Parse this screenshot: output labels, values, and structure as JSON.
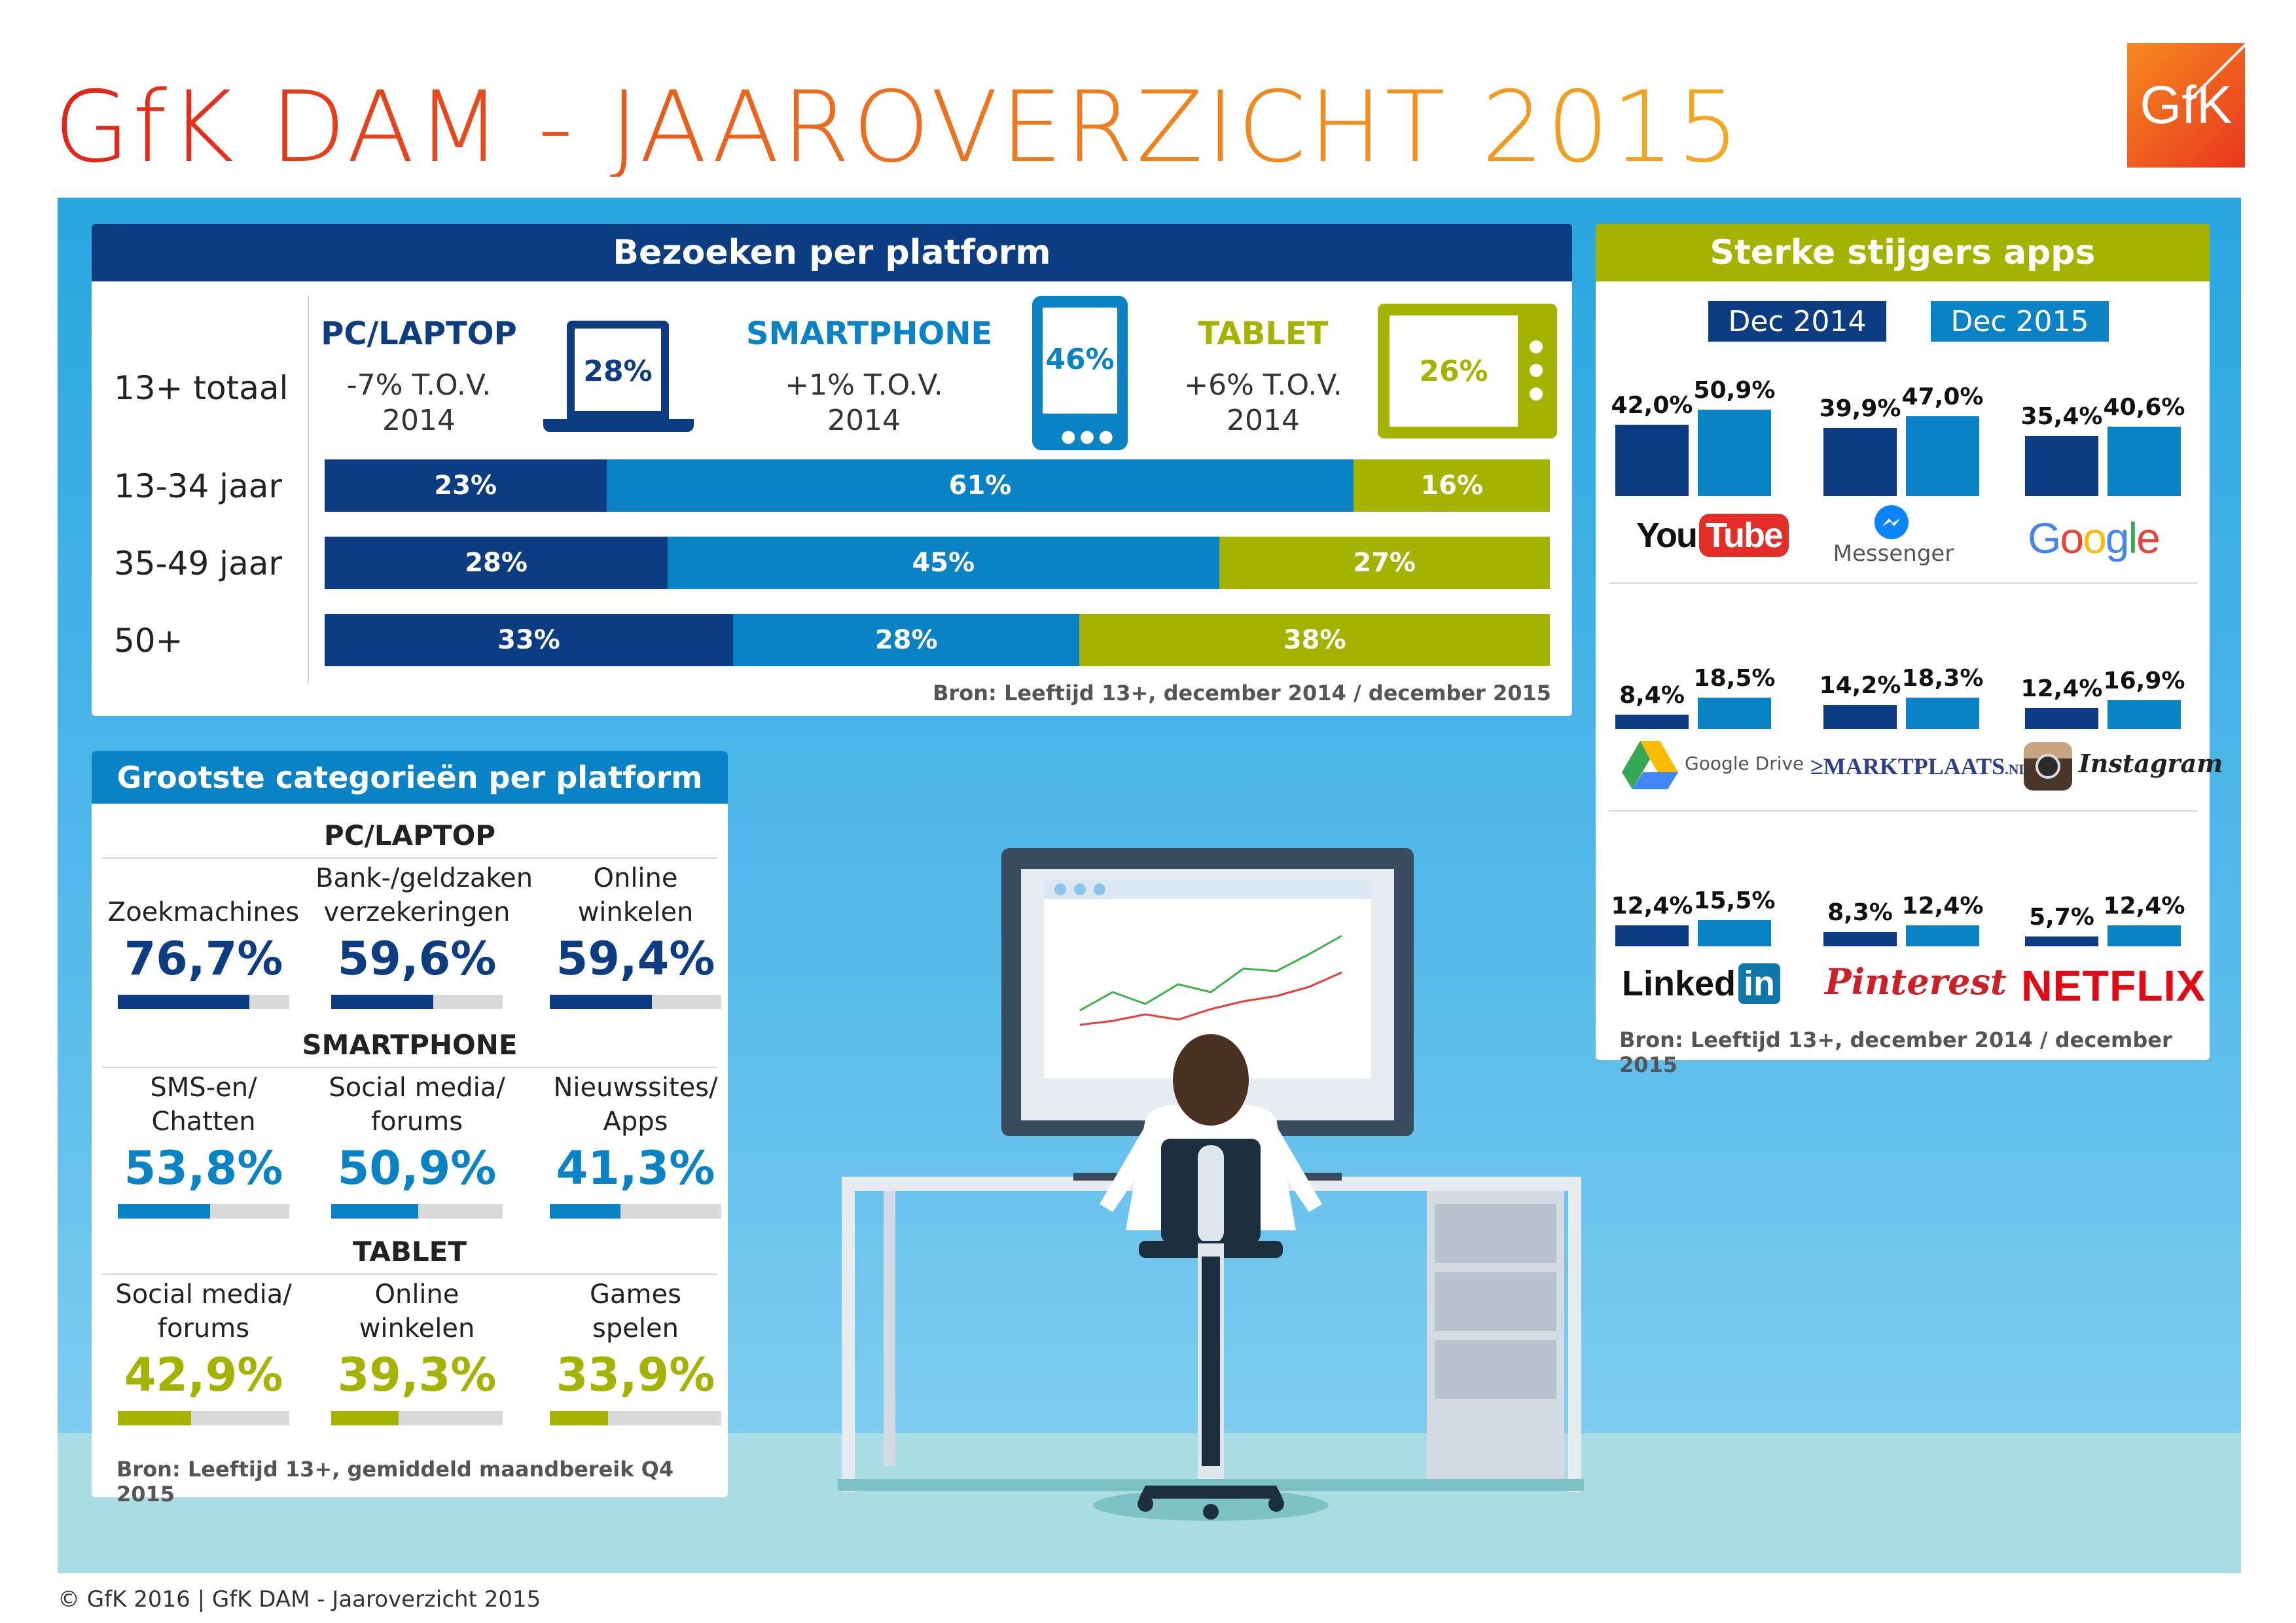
{
  "title": "GfK DAM - JAAROVERZICHT 2015",
  "logo": "GfK",
  "footer": "© GfK 2016 | GfK DAM - Jaaroverzicht 2015",
  "colors": {
    "dark_blue": "#0c3d82",
    "mid_blue": "#0a83c6",
    "green": "#a4b200",
    "orange": "#ec6a1c",
    "sky": "#29a6df"
  },
  "platform": {
    "header": "Bezoeken per platform",
    "source": "Bron: Leeftijd 13+, december 2014 / december 2015",
    "total_label": "13+ totaal",
    "devices": [
      {
        "name": "PC/LAPTOP",
        "change": "-7% T.O.V.",
        "year": "2014",
        "share": "28%"
      },
      {
        "name": "SMARTPHONE",
        "change": "+1% T.O.V.",
        "year": "2014",
        "share": "46%"
      },
      {
        "name": "TABLET",
        "change": "+6% T.O.V.",
        "year": "2014",
        "share": "26%"
      }
    ],
    "rows": [
      {
        "label": "13-34 jaar",
        "texts": [
          "23%",
          "61%",
          "16%"
        ]
      },
      {
        "label": "35-49 jaar",
        "texts": [
          "28%",
          "45%",
          "27%"
        ]
      },
      {
        "label": "50+",
        "texts": [
          "33%",
          "28%",
          "38%"
        ]
      }
    ]
  },
  "categories": {
    "header": "Grootste categorieën per platform",
    "source": "Bron: Leeftijd 13+, gemiddeld maandbereik Q4 2015",
    "sections": [
      {
        "name": "PC/LAPTOP",
        "items": [
          {
            "label": "Zoekmachines",
            "value": "76,7%"
          },
          {
            "label": "Bank-/geldzaken verzekeringen",
            "value": "59,6%"
          },
          {
            "label": "Online winkelen",
            "value": "59,4%"
          }
        ]
      },
      {
        "name": "SMARTPHONE",
        "items": [
          {
            "label": "SMS-en/ Chatten",
            "value": "53,8%"
          },
          {
            "label": "Social media/ forums",
            "value": "50,9%"
          },
          {
            "label": "Nieuwssites/ Apps",
            "value": "41,3%"
          }
        ]
      },
      {
        "name": "TABLET",
        "items": [
          {
            "label": "Social media/ forums",
            "value": "42,9%"
          },
          {
            "label": "Online winkelen",
            "value": "39,3%"
          },
          {
            "label": "Games spelen",
            "value": "33,9%"
          }
        ]
      }
    ]
  },
  "apps": {
    "header": "Sterke stijgers apps",
    "source": "Bron: Leeftijd 13+, december 2014 / december 2015",
    "legend": [
      "Dec 2014",
      "Dec 2015"
    ],
    "items": [
      {
        "name": "YouTube",
        "logo_parts": [
          "You",
          "Tube"
        ],
        "v2014": "42,0%",
        "v2015": "50,9%"
      },
      {
        "name": "Messenger",
        "logo_parts": [
          "Messenger"
        ],
        "v2014": "39,9%",
        "v2015": "47,0%"
      },
      {
        "name": "Google",
        "logo_parts": [
          "G",
          "o",
          "o",
          "g",
          "l",
          "e"
        ],
        "v2014": "35,4%",
        "v2015": "40,6%"
      },
      {
        "name": "Google Drive",
        "logo_parts": [
          "Google Drive"
        ],
        "v2014": "8,4%",
        "v2015": "18,5%"
      },
      {
        "name": "Marktplaats",
        "logo_parts": [
          "MARKTPLAATS",
          ".NL"
        ],
        "v2014": "14,2%",
        "v2015": "18,3%"
      },
      {
        "name": "Instagram",
        "logo_parts": [
          "Instagram"
        ],
        "v2014": "12,4%",
        "v2015": "16,9%"
      },
      {
        "name": "LinkedIn",
        "logo_parts": [
          "Linked",
          "in"
        ],
        "v2014": "12,4%",
        "v2015": "15,5%"
      },
      {
        "name": "Pinterest",
        "logo_parts": [
          "Pinterest"
        ],
        "v2014": "8,3%",
        "v2015": "12,4%"
      },
      {
        "name": "Netflix",
        "logo_parts": [
          "NETFLIX"
        ],
        "v2014": "5,7%",
        "v2015": "12,4%"
      }
    ]
  },
  "chart_data": [
    {
      "type": "bar",
      "title": "Bezoeken per platform",
      "subtitle": "13+ totaal",
      "series": [
        {
          "name": "PC/LAPTOP",
          "values": [
            28,
            23,
            28,
            33
          ]
        },
        {
          "name": "SMARTPHONE",
          "values": [
            46,
            61,
            45,
            28
          ]
        },
        {
          "name": "TABLET",
          "values": [
            26,
            16,
            27,
            38
          ]
        }
      ],
      "categories": [
        "13+ totaal",
        "13-34 jaar",
        "35-49 jaar",
        "50+"
      ],
      "stacked": true,
      "ylim": [
        0,
        100
      ]
    },
    {
      "type": "bar",
      "title": "Grootste categorieën per platform",
      "categories": [
        "Zoekmachines",
        "Bank-/geldzaken verzekeringen",
        "Online winkelen",
        "SMS-en/ Chatten",
        "Social media/ forums",
        "Nieuwssites/ Apps",
        "Social media/ forums",
        "Online winkelen",
        "Games spelen"
      ],
      "values": [
        76.7,
        59.6,
        59.4,
        53.8,
        50.9,
        41.3,
        42.9,
        39.3,
        33.9
      ],
      "ylim": [
        0,
        100
      ]
    },
    {
      "type": "bar",
      "title": "Sterke stijgers apps",
      "categories": [
        "YouTube",
        "Messenger",
        "Google",
        "Google Drive",
        "Marktplaats",
        "Instagram",
        "LinkedIn",
        "Pinterest",
        "Netflix"
      ],
      "series": [
        {
          "name": "Dec 2014",
          "values": [
            42.0,
            39.9,
            35.4,
            8.4,
            14.2,
            12.4,
            12.4,
            8.3,
            5.7
          ]
        },
        {
          "name": "Dec 2015",
          "values": [
            50.9,
            47.0,
            40.6,
            18.5,
            18.3,
            16.9,
            15.5,
            12.4,
            12.4
          ]
        }
      ],
      "legend": "top"
    }
  ]
}
